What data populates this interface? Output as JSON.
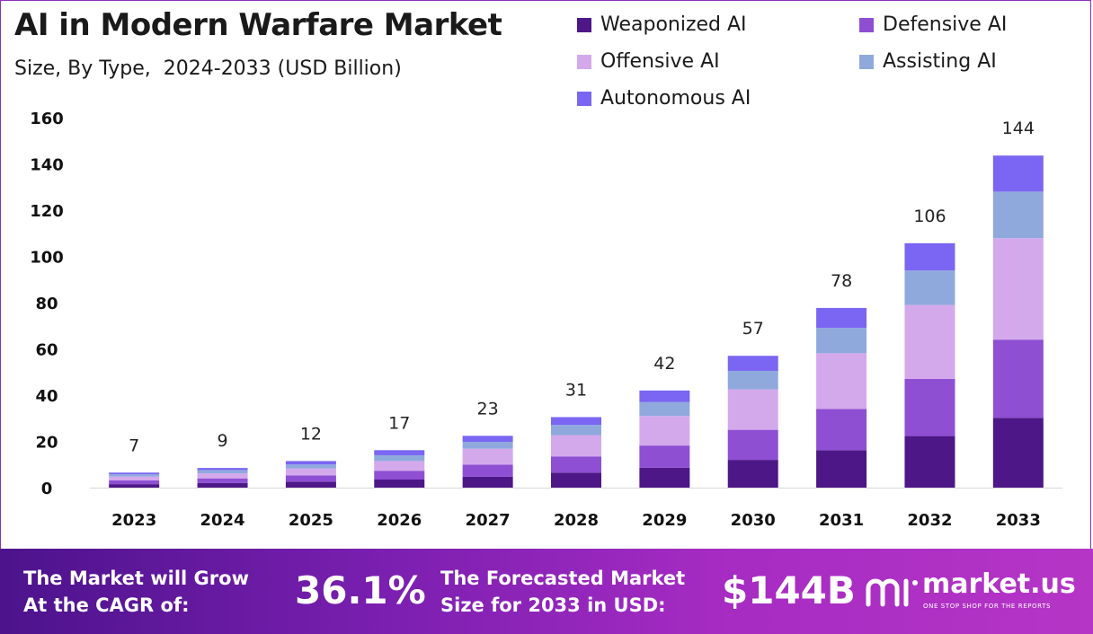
{
  "chart_data": {
    "type": "bar",
    "stacked": true,
    "title": "AI in Modern Warfare Market",
    "subtitle": "Size, By Type,  2024-2033 (USD Billion)",
    "categories": [
      "2023",
      "2024",
      "2025",
      "2026",
      "2027",
      "2028",
      "2029",
      "2030",
      "2031",
      "2032",
      "2033"
    ],
    "totals": [
      "7",
      "9",
      "12",
      "17",
      "23",
      "31",
      "42",
      "57",
      "78",
      "106",
      "144"
    ],
    "series": [
      {
        "name": "Weaponized AI",
        "color": "#4d1787",
        "values": [
          1.5,
          2.0,
          2.6,
          3.5,
          4.7,
          6.5,
          8.6,
          12.0,
          16.2,
          22.3,
          30.2
        ]
      },
      {
        "name": "Defensive AI",
        "color": "#8e4fd3",
        "values": [
          1.6,
          2.0,
          2.7,
          3.8,
          5.2,
          7.0,
          9.6,
          13.0,
          17.8,
          24.7,
          33.8
        ]
      },
      {
        "name": "Offensive AI",
        "color": "#d4a9ec",
        "values": [
          1.7,
          2.2,
          3.0,
          4.2,
          6.9,
          9.2,
          12.8,
          17.5,
          24.1,
          32.0,
          43.9
        ]
      },
      {
        "name": "Assisting AI",
        "color": "#8fa9dd",
        "values": [
          1.0,
          1.4,
          1.7,
          2.5,
          3.0,
          4.4,
          6.0,
          8.0,
          11.0,
          14.9,
          20.1
        ]
      },
      {
        "name": "Autonomous AI",
        "color": "#7a66f2",
        "values": [
          0.7,
          0.9,
          1.5,
          2.2,
          2.6,
          3.4,
          5.0,
          6.5,
          8.6,
          11.8,
          15.6
        ]
      }
    ],
    "xlabel": "",
    "ylabel": "",
    "ylim": [
      0,
      160
    ],
    "yticks": [
      0,
      20,
      40,
      60,
      80,
      100,
      120,
      140,
      160
    ],
    "grid": false,
    "legend_position": "top-right"
  },
  "banner": {
    "cagr_label_line1": "The Market will Grow",
    "cagr_label_line2": "At the CAGR of:",
    "cagr_value": "36.1%",
    "forecast_label_line1": "The Forecasted Market",
    "forecast_label_line2": "Size for 2033 in USD:",
    "forecast_value": "$144B",
    "logo_name": "market.us",
    "logo_tagline": "ONE STOP SHOP FOR THE REPORTS"
  }
}
